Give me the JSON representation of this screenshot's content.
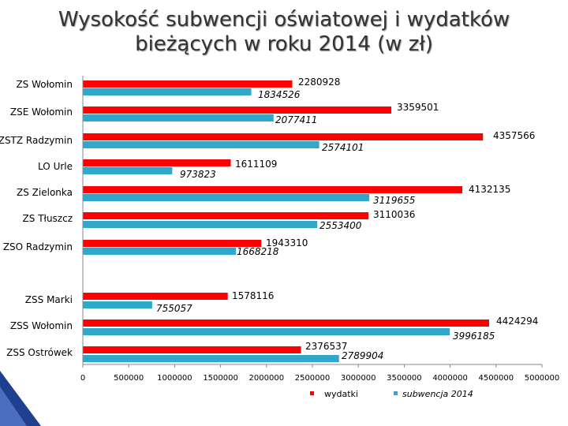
{
  "title": {
    "line1": "Wysokość subwencji oświatowej i wydatków",
    "line2": "bieżących w roku 2014 (w zł)"
  },
  "chart_data": {
    "type": "bar",
    "orientation": "horizontal",
    "title": "Wysokość subwencji oświatowej i wydatków bieżących w roku 2014 (w zł)",
    "categories": [
      "ZS Wołomin",
      "ZSE Wołomin",
      "ZSTZ Radzymin",
      "LO Urle",
      "ZS Zielonka",
      "ZS Tłuszcz",
      "ZSO Radzymin",
      "ZSS Marki",
      "ZSS Wołomin",
      "ZSS Ostrówek"
    ],
    "series": [
      {
        "name": "wydatki",
        "color": "#ff0000",
        "values": [
          2280928,
          3359501,
          4357566,
          1611109,
          4132135,
          3110036,
          1943310,
          1578116,
          4424294,
          2376537
        ]
      },
      {
        "name": "subwencja 2014",
        "color": "#31a7c9",
        "values": [
          1834526,
          2077411,
          2574101,
          973823,
          3119655,
          2553400,
          1668218,
          755057,
          3996185,
          2789904
        ]
      }
    ],
    "xlim": [
      0,
      5000000
    ],
    "xticks": [
      "0",
      "500000",
      "1000000",
      "1500000",
      "2000000",
      "2500000",
      "3000000",
      "3500000",
      "4000000",
      "4500000",
      "5000000"
    ],
    "grid": false,
    "legend": "bottom"
  },
  "decoration": {
    "accent_color": "#1f3f8f"
  }
}
